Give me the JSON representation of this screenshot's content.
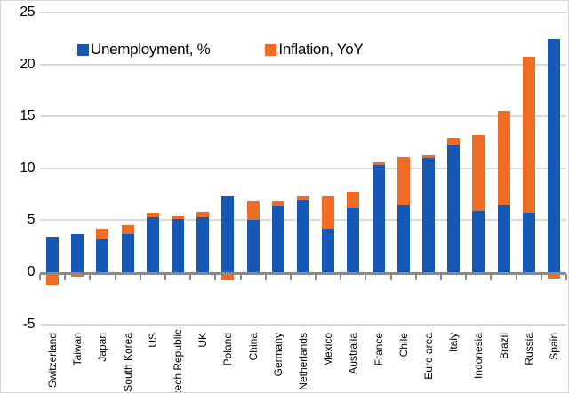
{
  "chart_data": {
    "type": "bar",
    "stacked": true,
    "categories": [
      "Switzerland",
      "Taiwan",
      "Japan",
      "South Korea",
      "US",
      "Czech Republic",
      "UK",
      "Poland",
      "China",
      "Germany",
      "Netherlands",
      "Mexico",
      "Australia",
      "France",
      "Chile",
      "Euro area",
      "Italy",
      "Indonesia",
      "Brazil",
      "Russia",
      "Spain"
    ],
    "series": [
      {
        "name": "Unemployment, %",
        "color": "#1658B6",
        "values": [
          3.4,
          3.7,
          3.2,
          3.7,
          5.3,
          5.1,
          5.3,
          7.3,
          5.0,
          6.4,
          6.9,
          4.2,
          6.2,
          10.3,
          6.5,
          11.0,
          12.3,
          5.9,
          6.5,
          5.7,
          22.4
        ]
      },
      {
        "name": "Inflation, YoY",
        "color": "#F06B24",
        "values": [
          -1.2,
          -0.4,
          1.0,
          0.8,
          0.4,
          0.4,
          0.5,
          -0.8,
          1.8,
          0.4,
          0.4,
          3.1,
          1.6,
          0.3,
          4.6,
          0.3,
          0.6,
          7.3,
          9.0,
          15.0,
          -0.6
        ]
      }
    ],
    "title": "",
    "xlabel": "",
    "ylabel": "",
    "ylim": [
      -5,
      25
    ],
    "yticks": [
      25,
      20,
      15,
      10,
      5,
      0,
      -5
    ],
    "grid": true,
    "legend_position": "top-inside"
  },
  "legend": {
    "unemployment_label": "Unemployment, %",
    "inflation_label": "Inflation, YoY"
  },
  "colors": {
    "unemployment_blue": "#1658B6",
    "inflation_orange": "#F06B24",
    "gridline_gray": "#D9D9D9",
    "axis_gray": "#898989",
    "text_black": "#000000",
    "background": "#FFFFFF"
  }
}
